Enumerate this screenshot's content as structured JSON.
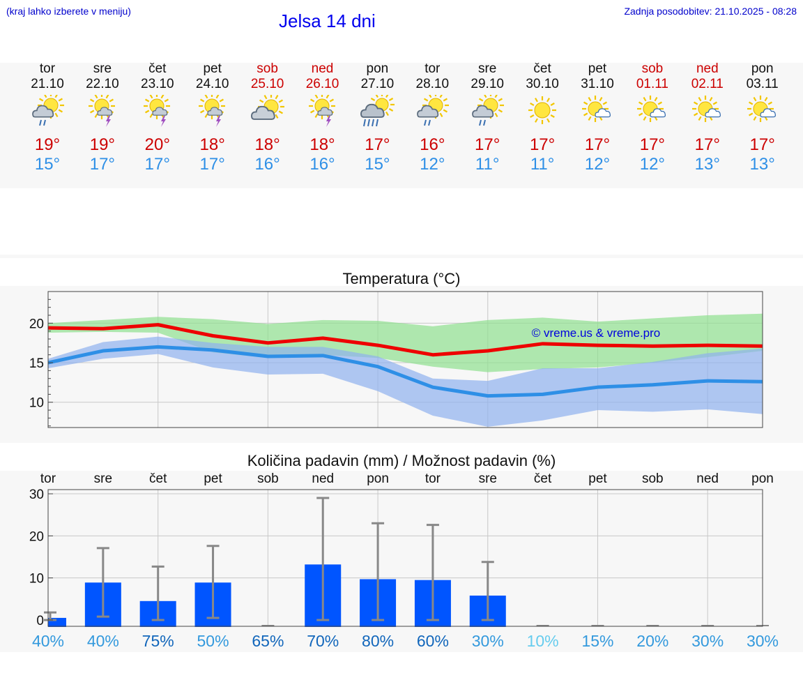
{
  "header": {
    "note": "(kraj lahko izberete v meniju)",
    "title": "Jelsa 14 dni",
    "updated": "Zadnja posodobitev: 21.10.2025 - 08:28"
  },
  "colors": {
    "max": "#cc0000",
    "min": "#2e8fe6",
    "weekend": "#cc0000",
    "bar": "#0055ff"
  },
  "days": [
    {
      "dow": "tor",
      "date": "21.10",
      "icon": "partly-cloudy-rain-icon",
      "max": "19°",
      "min": "15°",
      "weekend": false
    },
    {
      "dow": "sre",
      "date": "22.10",
      "icon": "partly-cloudy-thunder-icon",
      "max": "19°",
      "min": "17°",
      "weekend": false
    },
    {
      "dow": "čet",
      "date": "23.10",
      "icon": "partly-cloudy-thunder-icon",
      "max": "20°",
      "min": "17°",
      "weekend": false
    },
    {
      "dow": "pet",
      "date": "24.10",
      "icon": "partly-cloudy-thunder-icon",
      "max": "18°",
      "min": "17°",
      "weekend": false
    },
    {
      "dow": "sob",
      "date": "25.10",
      "icon": "partly-cloudy-icon",
      "max": "18°",
      "min": "16°",
      "weekend": true
    },
    {
      "dow": "ned",
      "date": "26.10",
      "icon": "partly-cloudy-thunder-icon",
      "max": "18°",
      "min": "16°",
      "weekend": true
    },
    {
      "dow": "pon",
      "date": "27.10",
      "icon": "cloudy-heavy-rain-icon",
      "max": "17°",
      "min": "15°",
      "weekend": false
    },
    {
      "dow": "tor",
      "date": "28.10",
      "icon": "partly-cloudy-rain-icon",
      "max": "16°",
      "min": "12°",
      "weekend": false
    },
    {
      "dow": "sre",
      "date": "29.10",
      "icon": "partly-cloudy-rain-icon",
      "max": "17°",
      "min": "11°",
      "weekend": false
    },
    {
      "dow": "čet",
      "date": "30.10",
      "icon": "sunny-icon",
      "max": "17°",
      "min": "11°",
      "weekend": false
    },
    {
      "dow": "pet",
      "date": "31.10",
      "icon": "mostly-sunny-icon",
      "max": "17°",
      "min": "12°",
      "weekend": false
    },
    {
      "dow": "sob",
      "date": "01.11",
      "icon": "mostly-sunny-icon",
      "max": "17°",
      "min": "12°",
      "weekend": true
    },
    {
      "dow": "ned",
      "date": "02.11",
      "icon": "mostly-sunny-icon",
      "max": "17°",
      "min": "13°",
      "weekend": true
    },
    {
      "dow": "pon",
      "date": "03.11",
      "icon": "mostly-sunny-icon",
      "max": "17°",
      "min": "13°",
      "weekend": false
    }
  ],
  "chart_data": [
    {
      "type": "line",
      "title": "Temperatura (°C)",
      "watermark": "© vreme.us & vreme.pro",
      "x": [
        0,
        1,
        2,
        3,
        4,
        5,
        6,
        7,
        8,
        9,
        10,
        11,
        12,
        13
      ],
      "ylim": [
        6.8,
        24
      ],
      "yticks": [
        10,
        15,
        20
      ],
      "series": [
        {
          "name": "max",
          "color": "#ee0000",
          "values": [
            19.4,
            19.3,
            19.8,
            18.4,
            17.5,
            18.1,
            17.2,
            16.0,
            16.5,
            17.4,
            17.2,
            17.1,
            17.2,
            17.1
          ]
        },
        {
          "name": "min",
          "color": "#2e8fe6",
          "values": [
            15.0,
            16.5,
            17.0,
            16.6,
            15.8,
            15.9,
            14.5,
            11.9,
            10.8,
            11.0,
            11.9,
            12.2,
            12.7,
            12.6
          ]
        }
      ],
      "bands": [
        {
          "name": "max-range",
          "color": "#8ee08e",
          "lower": [
            18.8,
            18.9,
            18.8,
            16.3,
            15.6,
            16.0,
            15.6,
            14.5,
            13.8,
            14.2,
            14.4,
            15.0,
            15.7,
            16.5
          ],
          "upper": [
            20.0,
            20.4,
            20.8,
            20.5,
            19.9,
            20.4,
            20.3,
            19.6,
            20.4,
            20.7,
            20.2,
            20.6,
            21.0,
            21.2
          ]
        },
        {
          "name": "min-range",
          "color": "#8fb0ee",
          "lower": [
            14.3,
            15.5,
            16.1,
            14.4,
            13.5,
            13.6,
            11.4,
            8.3,
            6.9,
            7.7,
            9.0,
            8.8,
            9.1,
            8.5
          ],
          "upper": [
            15.5,
            17.6,
            18.3,
            17.5,
            17.0,
            17.0,
            15.8,
            13.0,
            12.7,
            14.3,
            14.3,
            15.1,
            16.2,
            16.8
          ]
        }
      ]
    },
    {
      "type": "bar",
      "title": "Količina padavin (mm) / Možnost padavin (%)",
      "categories": [
        "tor",
        "sre",
        "čet",
        "pet",
        "sob",
        "ned",
        "pon",
        "tor",
        "sre",
        "čet",
        "pet",
        "sob",
        "ned",
        "pon"
      ],
      "values": [
        0.5,
        8.9,
        4.5,
        8.9,
        0,
        13.2,
        9.7,
        9.5,
        5.8,
        0,
        0,
        0,
        0,
        0
      ],
      "error_bars": [
        [
          0,
          1.8
        ],
        [
          0.8,
          17.1
        ],
        [
          0,
          12.7
        ],
        [
          0.5,
          17.6
        ],
        [
          0,
          0
        ],
        [
          0,
          29.0
        ],
        [
          0,
          23.0
        ],
        [
          0,
          22.6
        ],
        [
          0,
          13.8
        ],
        [
          0,
          0
        ],
        [
          0,
          0
        ],
        [
          0,
          0
        ],
        [
          0,
          0
        ],
        [
          0,
          0
        ]
      ],
      "probability": [
        "40%",
        "40%",
        "75%",
        "50%",
        "65%",
        "70%",
        "80%",
        "60%",
        "30%",
        "10%",
        "15%",
        "20%",
        "30%",
        "30%"
      ],
      "probability_colors": [
        "#3399dd",
        "#3399dd",
        "#1166bb",
        "#3399dd",
        "#1166bb",
        "#1166bb",
        "#1166bb",
        "#1166bb",
        "#3399dd",
        "#66ccee",
        "#3399dd",
        "#3399dd",
        "#3399dd",
        "#3399dd"
      ],
      "ylim": [
        -1.5,
        31
      ],
      "yticks": [
        0,
        10,
        20,
        30
      ]
    }
  ]
}
